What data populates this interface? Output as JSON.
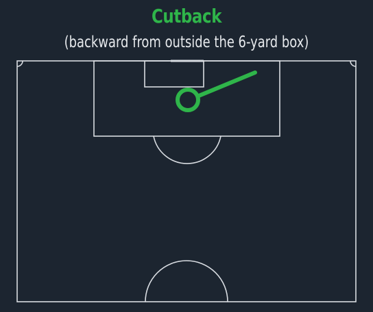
{
  "header": {
    "title": "Cutback",
    "subtitle": "(backward from outside the 6-yard box)"
  },
  "colors": {
    "background": "#1c2530",
    "pitch_lines": "#d9dde2",
    "title": "#2fb54a",
    "subtitle": "#e6e9ec",
    "pass_marker": "#2fb54a"
  },
  "pass": {
    "type": "cutback",
    "marker_icon": "ring-with-tail"
  }
}
